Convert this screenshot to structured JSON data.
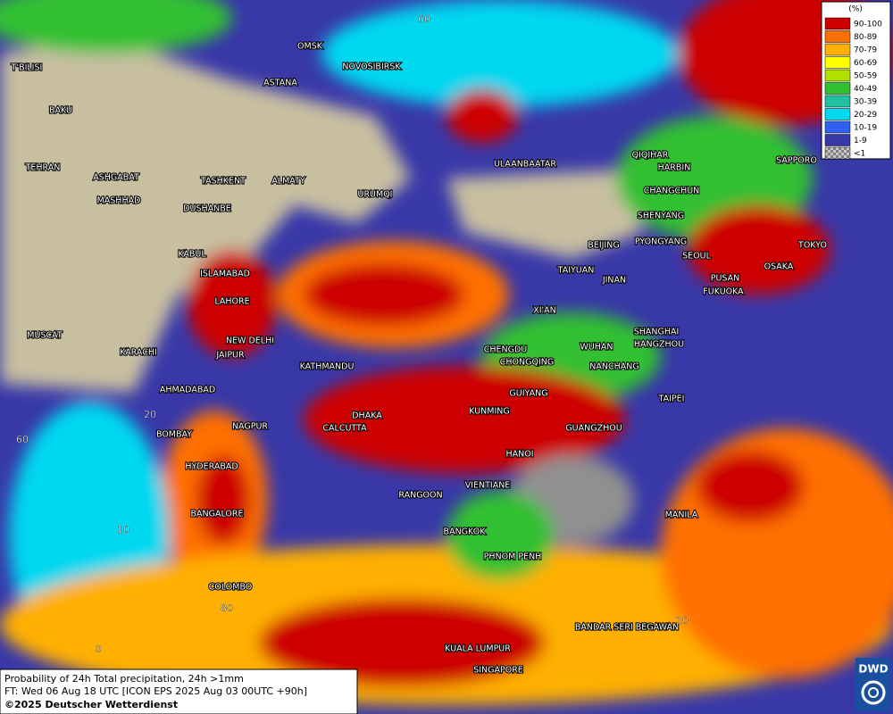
{
  "map": {
    "legend": {
      "unit": "(%)",
      "classes": [
        {
          "label": "90-100",
          "color": "#cc0000"
        },
        {
          "label": "80-89",
          "color": "#ff7000"
        },
        {
          "label": "70-79",
          "color": "#ffb000"
        },
        {
          "label": "60-69",
          "color": "#ffff00"
        },
        {
          "label": "50-59",
          "color": "#b0e000"
        },
        {
          "label": "40-49",
          "color": "#30c030"
        },
        {
          "label": "30-39",
          "color": "#20c0a0"
        },
        {
          "label": "20-29",
          "color": "#00d8f0"
        },
        {
          "label": "10-19",
          "color": "#3060f0"
        },
        {
          "label": "1-9",
          "color": "#3838a8"
        },
        {
          "label": "<1",
          "color": "#a0a0a0"
        }
      ]
    },
    "cities": [
      "OMSK",
      "NOVOSIBIRSK",
      "ASTANA",
      "T'BILISI",
      "BAKU",
      "TEHRAN",
      "ASHGABAT",
      "MASHHAD",
      "TASHKENT",
      "ALMATY",
      "DUSHANBE",
      "URUMQI",
      "ULAANBAATAR",
      "QIQIHAR",
      "HARBIN",
      "CHANGCHUN",
      "SAPPORO",
      "SHENYANG",
      "BEIJING",
      "PYONGYANG",
      "SEOUL",
      "TOKYO",
      "OSAKA",
      "PUSAN",
      "FUKUOKA",
      "TAIYUAN",
      "JINAN",
      "KABUL",
      "ISLAMABAD",
      "LAHORE",
      "XI'AN",
      "SHANGHAI",
      "WUHAN",
      "HANGZHOU",
      "CHENGDU",
      "CHONGQING",
      "NANCHANG",
      "NEW DELHI",
      "JAIPUR",
      "MUSCAT",
      "KARACHI",
      "KATHMANDU",
      "AHMADABAD",
      "GUIYANG",
      "TAIPEI",
      "KUNMING",
      "DHAKA",
      "NAGPUR",
      "BOMBAY",
      "CALCUTTA",
      "GUANGZHOU",
      "HANOI",
      "HYDERABAD",
      "VIENTIANE",
      "RANGOON",
      "BANGALORE",
      "MANILA",
      "BANGKOK",
      "PHNOM PENH",
      "COLOMBO",
      "BANDAR SERI BEGAWAN",
      "KUALA LUMPUR",
      "SINGAPORE"
    ],
    "grid_labels": [
      "60",
      "60",
      "20",
      "10",
      "80",
      "0",
      "20"
    ],
    "footer": {
      "line1": "Probability of 24h Total precipitation, 24h >1mm",
      "line2": "FT: Wed 06 Aug 18 UTC [ICON EPS 2025 Aug 03 00UTC +90h]",
      "line3": "©2025 Deutscher Wetterdienst"
    },
    "logo": "DWD"
  }
}
